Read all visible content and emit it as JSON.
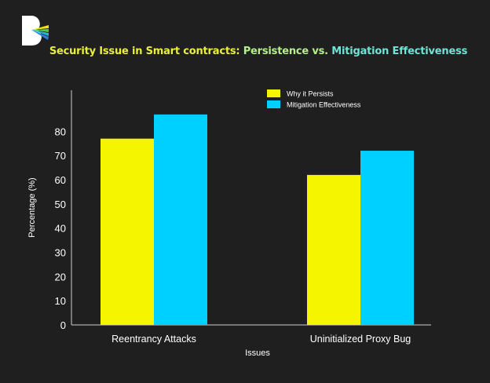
{
  "title": {
    "part1": "Security Issue in Smart contracts: ",
    "part2": "Persistence vs. ",
    "part3": "Mitigation Effectiveness"
  },
  "colors": {
    "background": "#1f1f1f",
    "why_persists": "#f5f500",
    "mitigation": "#00d0ff",
    "axis": "#cfcfcf",
    "text": "#ffffff"
  },
  "chart_data": {
    "type": "bar",
    "categories": [
      "Reentrancy Attacks",
      "Uninitialized Proxy Bug"
    ],
    "series": [
      {
        "name": "Why it Persists",
        "values": [
          77,
          62
        ],
        "color": "#f5f500"
      },
      {
        "name": "Mitigation Effectiveness",
        "values": [
          87,
          72
        ],
        "color": "#00d0ff"
      }
    ],
    "xlabel": "Issues",
    "ylabel": "Percentage (%)",
    "ylim": [
      0,
      97
    ],
    "yticks": [
      0,
      10,
      20,
      30,
      40,
      50,
      60,
      70,
      80
    ],
    "legend_position": "top-right",
    "grid": false
  }
}
